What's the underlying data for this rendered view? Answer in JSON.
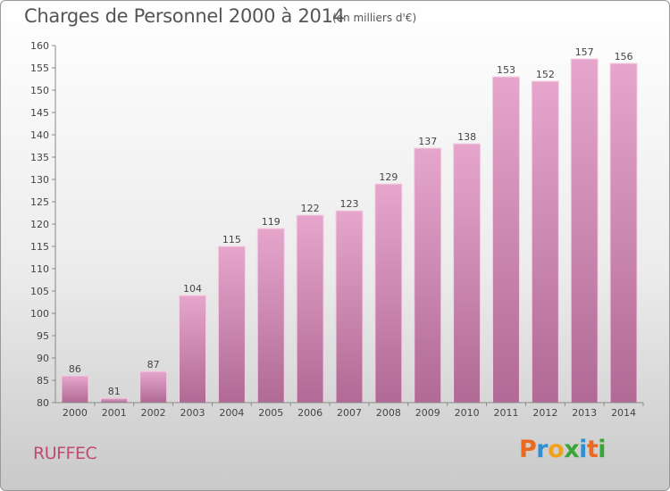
{
  "header": {
    "title": "Charges de Personnel 2000 à 2014",
    "subtitle": "(en milliers d'€)"
  },
  "footer": {
    "town": "RUFFEC",
    "logo": {
      "letters": [
        "P",
        "r",
        "o",
        "x",
        "i",
        "t",
        "i"
      ],
      "text": "Proxiti"
    }
  },
  "colors": {
    "bar_top": "#e6a6cc",
    "bar_bottom": "#b06a95",
    "town": "#c24a6e"
  },
  "chart_data": {
    "type": "bar",
    "title": "Charges de Personnel 2000 à 2014",
    "subtitle": "(en milliers d'€)",
    "categories": [
      "2000",
      "2001",
      "2002",
      "2003",
      "2004",
      "2005",
      "2006",
      "2007",
      "2008",
      "2009",
      "2010",
      "2011",
      "2012",
      "2013",
      "2014"
    ],
    "values": [
      86,
      81,
      87,
      104,
      115,
      119,
      122,
      123,
      129,
      137,
      138,
      153,
      152,
      157,
      156
    ],
    "ylim": [
      80,
      160
    ],
    "yticks": [
      80,
      85,
      90,
      95,
      100,
      105,
      110,
      115,
      120,
      125,
      130,
      135,
      140,
      145,
      150,
      155,
      160
    ],
    "grid": false,
    "data_labels": true
  }
}
